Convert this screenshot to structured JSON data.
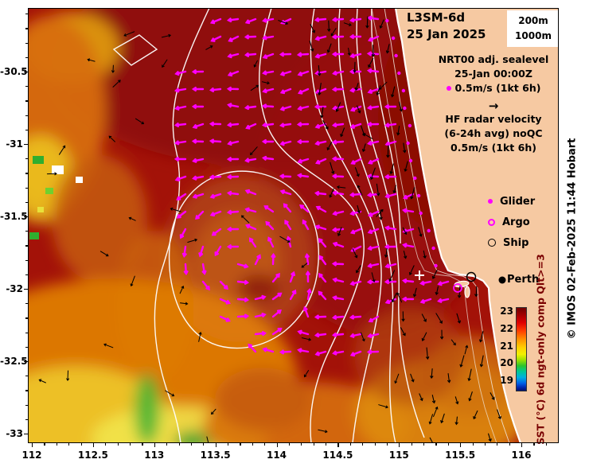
{
  "header": {
    "product": "L3SM-6d",
    "date": "25 Jan 2025"
  },
  "contour_key": {
    "depth1": "200m",
    "depth2": "1000m"
  },
  "legend": {
    "sealevel_line1": "NRT00 adj. sealevel",
    "sealevel_line2": "25-Jan 00:00Z",
    "sealevel_scale": "0.5m/s (1kt 6h)",
    "hf_arrow": "→",
    "hf_line1": "HF radar velocity",
    "hf_line2": "(6-24h avg) noQC",
    "hf_scale": "0.5m/s (1kt 6h)",
    "glider_label": "Glider",
    "argo_label": "Argo",
    "ship_label": "Ship"
  },
  "map": {
    "city_label": "Perth"
  },
  "colorbar": {
    "label": "SST (°C) 6d ngt-only comp Qlt>=3",
    "ticks": [
      "23",
      "22",
      "21",
      "20",
      "19"
    ],
    "gradient": [
      "#700000 0%",
      "#a00000 8%",
      "#e00000 18%",
      "#ff4000 28%",
      "#ff9000 38%",
      "#ffd000 48%",
      "#f2f000 56%",
      "#9ce000 63%",
      "#2cc42c 70%",
      "#00c896 77%",
      "#00b0e0 84%",
      "#0060e8 91%",
      "#0028b0 96%",
      "#001070 100%"
    ]
  },
  "axes": {
    "x_ticks": [
      "112",
      "112.5",
      "113",
      "113.5",
      "114",
      "114.5",
      "115",
      "115.5",
      "116"
    ],
    "y_ticks": [
      "-30.5",
      "-31",
      "-31.5",
      "-32",
      "-32.5",
      "-33"
    ]
  },
  "credit": "© IMOS 02-Feb-2025 11:44 Hobart",
  "colors": {
    "sealevel_vector": "#ff00ff",
    "hf_vector": "#000000",
    "glider_marker": "#ff00ff",
    "argo_marker": "#ff00ff",
    "ship_marker": "#000000",
    "land": "#f6c9a2",
    "ocean_base": "#a31208",
    "contour": "#ffffff",
    "colorbar_label": "#7a0000"
  },
  "chart_data": {
    "type": "heatmap",
    "title": "L3SM-6d 25 Jan 2025",
    "x_ticks": [
      112,
      112.5,
      113,
      113.5,
      114,
      114.5,
      115,
      115.5,
      116
    ],
    "y_ticks": [
      -30.5,
      -31,
      -31.5,
      -32,
      -32.5,
      -33
    ],
    "x_range": [
      111.97,
      116.3
    ],
    "y_range": [
      -33.07,
      -30.06
    ],
    "colorbar": {
      "label": "SST (°C) 6d ngt-only comp Qlt>=3",
      "tick_values": [
        23,
        22,
        21,
        20,
        19
      ]
    },
    "overlays": [
      "NRT00 adj. sealevel velocity vectors 25-Jan 00:00Z, scale 0.5m/s (1kt 6h), magenta",
      "HF radar velocity (6-24h avg) noQC, scale 0.5m/s (1kt 6h), black",
      "White sea level contours with warm-core eddy near 113.7E -31.7S",
      "200m and 1000m isobaths along shelf",
      "Glider dots (magenta), Argo circles (magenta), Ship circles (black)"
    ],
    "city_marker": {
      "name": "Perth",
      "lon": 115.86,
      "lat": -31.95
    }
  }
}
